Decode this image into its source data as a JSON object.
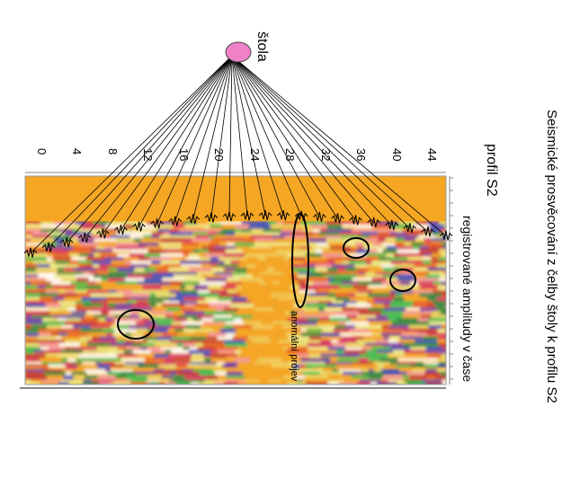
{
  "title": "Seismické prosvěcování z čelby štoly k profilu S2",
  "source_label": "štola",
  "profile_label": "profil S2",
  "amplitude_label": "registrované amplitudy v čase",
  "anomaly_label": "anomální projev",
  "profile_ticks": [
    "0",
    "4",
    "8",
    "12",
    "16",
    "20",
    "24",
    "28",
    "32",
    "36",
    "40",
    "44"
  ],
  "colors": {
    "source_fill": "#f080c8",
    "background_band": "#f5a623",
    "ray_line": "#000000"
  }
}
